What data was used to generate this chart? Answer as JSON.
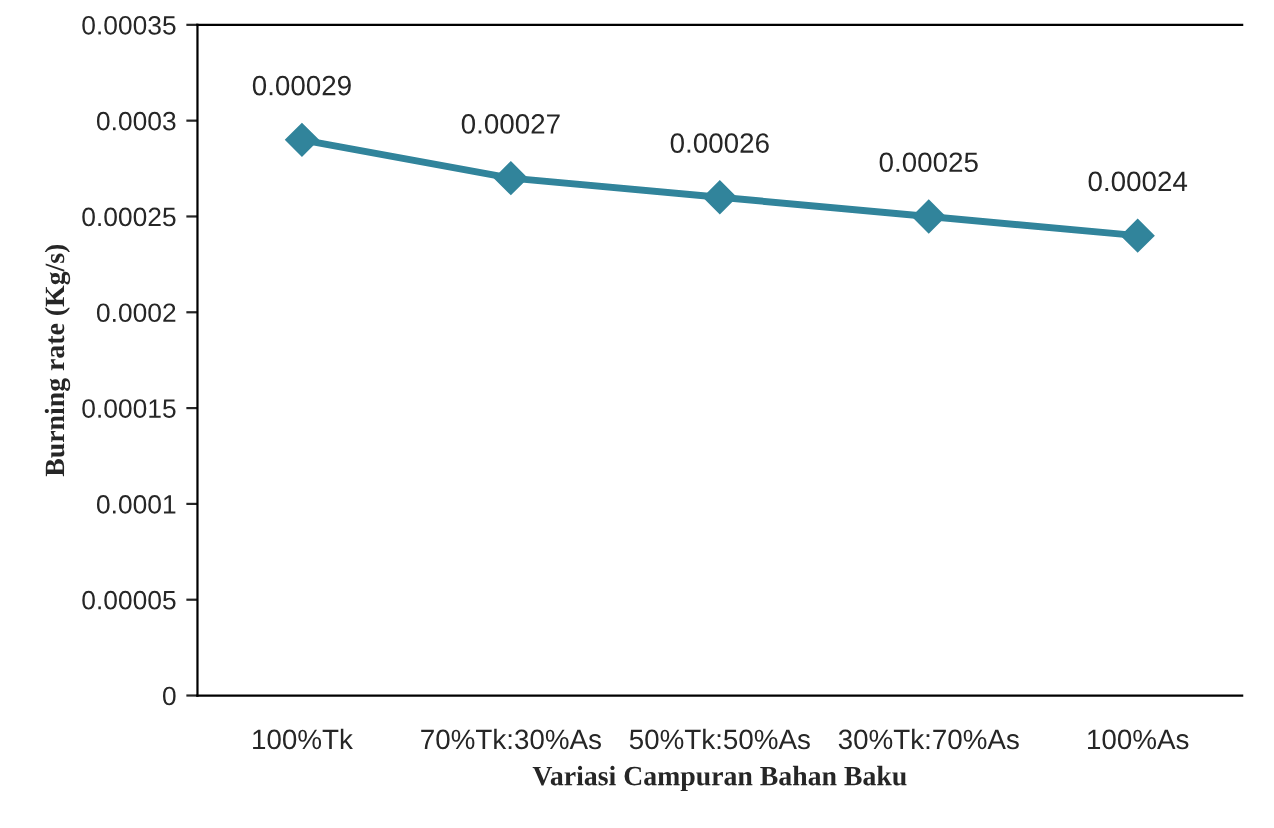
{
  "chart_data": {
    "type": "line",
    "xlabel": "Variasi Campuran Bahan Baku",
    "ylabel": "Burning rate (Kg/s)",
    "categories": [
      "100%Tk",
      "70%Tk:30%As",
      "50%Tk:50%As",
      "30%Tk:70%As",
      "100%As"
    ],
    "series": [
      {
        "color": "#31849b",
        "values": [
          0.00029,
          0.00027,
          0.00026,
          0.00025,
          0.00024
        ]
      }
    ],
    "ylim": [
      0,
      0.00035
    ],
    "yticks": [
      0,
      {
        "value": 5e-05,
        "label": "0.00005"
      },
      {
        "value": 0.0001,
        "label": "0.0001"
      },
      {
        "value": 0.00015,
        "label": "0.00015"
      },
      {
        "value": 0.0002,
        "label": "0.0002"
      },
      {
        "value": 0.00025,
        "label": "0.00025"
      },
      {
        "value": 0.0003,
        "label": "0.0003"
      },
      {
        "value": 0.00035,
        "label": "0.00035"
      }
    ],
    "marker": "diamond",
    "line_style": "solid",
    "data_labels": true,
    "grid": false,
    "legend": false
  }
}
